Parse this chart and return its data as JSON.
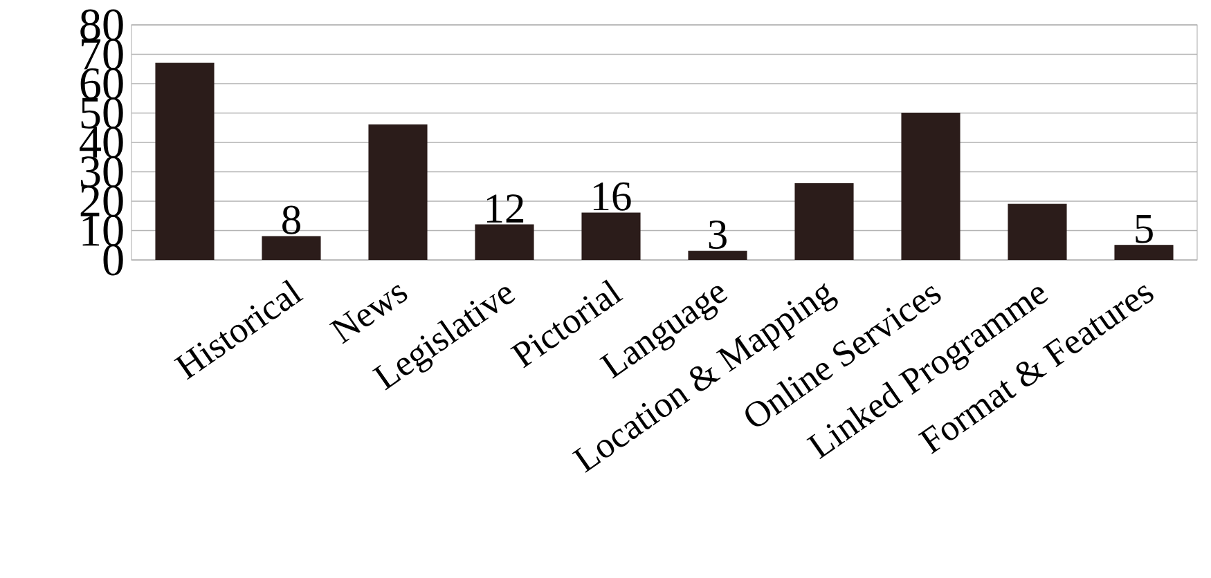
{
  "chart_data": {
    "type": "bar",
    "categories": [
      null,
      "Historical",
      "News",
      "Legislative",
      "Pictorial",
      "Language",
      "Location & Mapping",
      "Online Services",
      "Linked Programme",
      "Format & Features"
    ],
    "values": [
      67,
      8,
      46,
      12,
      16,
      3,
      26,
      50,
      19,
      5
    ],
    "value_labels": [
      null,
      "8",
      null,
      "12",
      "16",
      "3",
      null,
      null,
      null,
      "5"
    ],
    "color": "#2b1c1a",
    "ylim": [
      0,
      80
    ],
    "yticks": [
      0,
      10,
      20,
      30,
      40,
      50,
      60,
      70,
      80
    ],
    "grid": "y"
  }
}
